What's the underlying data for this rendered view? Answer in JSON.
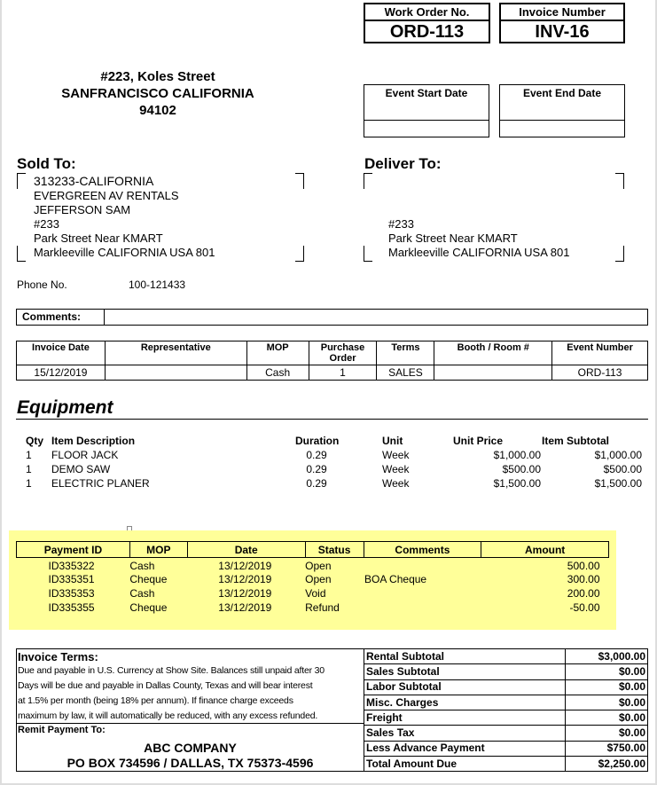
{
  "header": {
    "work_order_label": "Work Order No.",
    "work_order": "ORD-113",
    "invoice_label": "Invoice Number",
    "invoice": "INV-16",
    "event_start_label": "Event Start Date",
    "event_end_label": "Event End Date"
  },
  "company_address": [
    "#223, Koles Street",
    "SANFRANCISCO CALIFORNIA",
    "94102"
  ],
  "sold_to": {
    "label": "Sold To:",
    "lines": [
      "313233-CALIFORNIA",
      "EVERGREEN AV RENTALS",
      "JEFFERSON SAM",
      "#233",
      "Park Street Near KMART",
      "Markleeville CALIFORNIA  USA 801"
    ]
  },
  "deliver_to": {
    "label": "Deliver To:",
    "lines": [
      "#233",
      "Park Street Near KMART",
      "Markleeville CALIFORNIA  USA 801"
    ]
  },
  "phone": {
    "label": "Phone No.",
    "value": "100-121433"
  },
  "comments": {
    "label": "Comments:",
    "value": ""
  },
  "invoice_info": {
    "headers": [
      "Invoice Date",
      "Representative",
      "MOP",
      "Purchase Order",
      "Terms",
      "Booth / Room #",
      "Event Number"
    ],
    "values": [
      "15/12/2019",
      "",
      "Cash",
      "1",
      "SALES",
      "",
      "ORD-113"
    ]
  },
  "equipment": {
    "title": "Equipment",
    "headers": [
      "Qty",
      "Item Description",
      "Duration",
      "Unit",
      "Unit Price",
      "Item Subtotal"
    ],
    "rows": [
      [
        "1",
        "FLOOR JACK",
        "0.29",
        "Week",
        "$1,000.00",
        "$1,000.00"
      ],
      [
        "1",
        "DEMO SAW",
        "0.29",
        "Week",
        "$500.00",
        "$500.00"
      ],
      [
        "1",
        "ELECTRIC PLANER",
        "0.29",
        "Week",
        "$1,500.00",
        "$1,500.00"
      ]
    ]
  },
  "payments": {
    "headers": [
      "Payment ID",
      "MOP",
      "Date",
      "Status",
      "Comments",
      "Amount"
    ],
    "rows": [
      [
        "ID335322",
        "Cash",
        "13/12/2019",
        "Open",
        "",
        "500.00"
      ],
      [
        "ID335351",
        "Cheque",
        "13/12/2019",
        "Open",
        "BOA Cheque",
        "300.00"
      ],
      [
        "ID335353",
        "Cash",
        "13/12/2019",
        "Void",
        "",
        "200.00"
      ],
      [
        "ID335355",
        "Cheque",
        "13/12/2019",
        "Refund",
        "",
        "-50.00"
      ]
    ],
    "highlight_color": "#ffff99"
  },
  "terms": {
    "label": "Invoice Terms:",
    "lines": [
      "Due and payable in U.S. Currency at Show Site. Balances still unpaid after 30",
      "Days will be due and payable in Dallas County, Texas and will bear interest",
      "at 1.5% per month (being 18% per annum).    If finance charge exceeds",
      "maximum by law, it will automatically be reduced, with any excess refunded."
    ],
    "remit_label": "Remit Payment To:",
    "remit_name": "ABC COMPANY",
    "remit_address": "PO BOX 734596 / DALLAS, TX 75373-4596"
  },
  "totals": [
    [
      "Rental Subtotal",
      "$3,000.00"
    ],
    [
      "Sales Subtotal",
      "$0.00"
    ],
    [
      "Labor Subtotal",
      "$0.00"
    ],
    [
      "Misc. Charges",
      "$0.00"
    ],
    [
      "Freight",
      "$0.00"
    ],
    [
      "Sales Tax",
      "$0.00"
    ],
    [
      "Less Advance Payment",
      "$750.00"
    ],
    [
      "Total Amount Due",
      "$2,250.00"
    ]
  ]
}
